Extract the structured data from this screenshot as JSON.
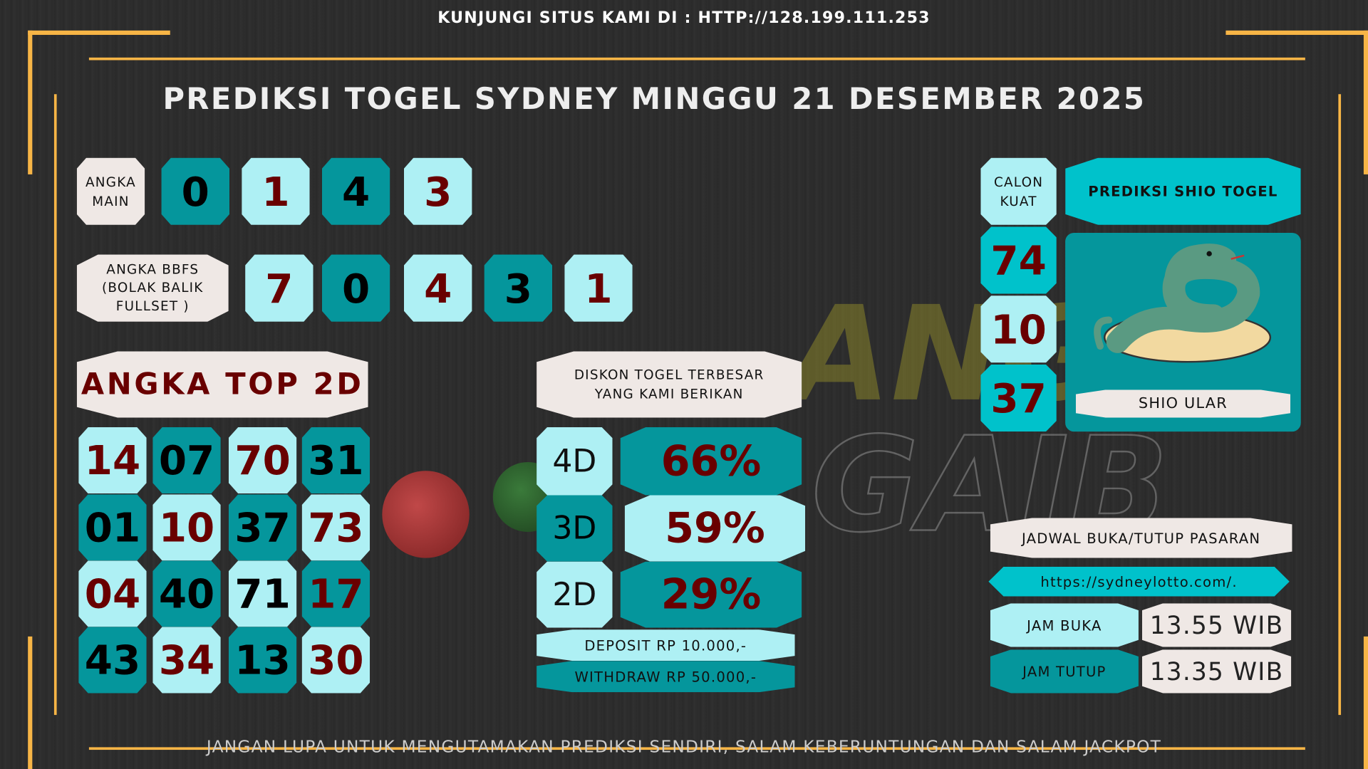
{
  "header": {
    "visit_text": "KUNJUNGI SITUS KAMI DI : HTTP://128.199.111.253",
    "title": "PREDIKSI TOGEL SYDNEY MINGGU 21 DESEMBER 2025"
  },
  "angka_main": {
    "label_1": "ANGKA",
    "label_2": "MAIN",
    "digits": [
      "0",
      "1",
      "4",
      "3"
    ]
  },
  "bbfs": {
    "label_1": "ANGKA BBFS",
    "label_2": "(BOLAK BALIK",
    "label_3": "FULLSET )",
    "digits": [
      "7",
      "0",
      "4",
      "3",
      "1"
    ]
  },
  "top2d": {
    "title": "ANGKA TOP 2D",
    "numbers": [
      "14",
      "07",
      "70",
      "31",
      "01",
      "10",
      "37",
      "73",
      "04",
      "40",
      "71",
      "17",
      "43",
      "34",
      "13",
      "30"
    ]
  },
  "diskon": {
    "title_1": "DISKON TOGEL TERBESAR",
    "title_2": "YANG KAMI BERIKAN",
    "rows": [
      {
        "type": "4D",
        "value": "66%"
      },
      {
        "type": "3D",
        "value": "59%"
      },
      {
        "type": "2D",
        "value": "29%"
      }
    ],
    "deposit": "DEPOSIT RP 10.000,-",
    "withdraw": "WITHDRAW RP 50.000,-"
  },
  "calon_kuat": {
    "label_1": "CALON",
    "label_2": "KUAT",
    "numbers": [
      "74",
      "10",
      "37"
    ]
  },
  "shio": {
    "title": "PREDIKSI SHIO TOGEL",
    "name": "SHIO ULAR",
    "icon": "snake-icon"
  },
  "jadwal": {
    "title": "JADWAL BUKA/TUTUP PASARAN",
    "url": "https://sydneylotto.com/.",
    "buka_label": "JAM BUKA",
    "buka_value": "13.55 WIB",
    "tutup_label": "JAM TUTUP",
    "tutup_value": "13.35 WIB"
  },
  "footer": "JANGAN LUPA UNTUK MENGUTAMAKAN PREDIKSI SENDIRI, SALAM KEBERUNTUNGAN DAN SALAM JACKPOT",
  "colors": {
    "dark_teal": "#05969c",
    "light_cyan": "#aef0f4",
    "bright_teal": "#00c2cb",
    "cream": "#efe8e5",
    "dark_red": "#690000",
    "frame": "#f7b546"
  }
}
